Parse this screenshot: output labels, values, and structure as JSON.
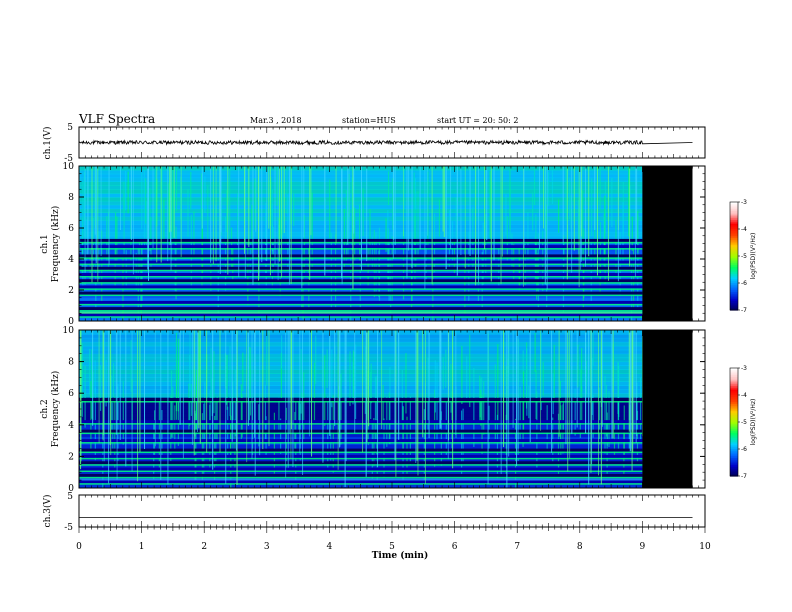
{
  "header": {
    "title": "VLF Spectra",
    "date": "Mar.3 , 2018",
    "station": "station=HUS",
    "start": "start UT = 20: 50: 2"
  },
  "chart_data": [
    {
      "id": "ch1-waveform",
      "type": "line",
      "ylabel": "ch.1(V)",
      "ylim": [
        -5,
        5
      ],
      "yticks": [
        "5",
        "-5"
      ],
      "xlim": [
        0,
        10
      ],
      "signal": {
        "baseline": 0,
        "noise_amplitude": 0.6,
        "data_end_min": 9.0,
        "flat_until_min": 9.8
      }
    },
    {
      "id": "ch1-spectrogram",
      "type": "heatmap",
      "ylabel_top": "ch.1",
      "ylabel": "Frequency (kHz)",
      "ylim": [
        0,
        10
      ],
      "yticks": [
        "0",
        "2",
        "4",
        "6",
        "8",
        "10"
      ],
      "xlim": [
        0,
        10
      ],
      "data_end_min": 9.0,
      "blank_until_min": 9.8,
      "bands_khz": [
        0.4,
        0.8,
        1.2,
        1.8,
        2.2,
        2.6,
        3.0,
        3.4,
        3.8,
        4.2,
        4.8,
        5.2
      ],
      "colorbar": {
        "label": "log(PSD)(V²/Hz)",
        "ticks": [
          "-3",
          "-4",
          "-5",
          "-6",
          "-7"
        ],
        "range": [
          -7,
          -3
        ]
      }
    },
    {
      "id": "ch2-spectrogram",
      "type": "heatmap",
      "ylabel_top": "ch.2",
      "ylabel": "Frequency (kHz)",
      "ylim": [
        0,
        10
      ],
      "yticks": [
        "0",
        "2",
        "4",
        "6",
        "8",
        "10"
      ],
      "xlim": [
        0,
        10
      ],
      "data_end_min": 9.0,
      "blank_until_min": 9.8,
      "bands_khz": [
        0.4,
        0.8,
        1.2,
        1.6,
        2.0,
        2.4,
        3.0,
        3.6,
        4.2,
        5.6
      ],
      "colorbar": {
        "label": "log(PSD)(V²/Hz)",
        "ticks": [
          "-3",
          "-4",
          "-5",
          "-6",
          "-7"
        ],
        "range": [
          -7,
          -3
        ]
      }
    },
    {
      "id": "ch3-waveform",
      "type": "line",
      "ylabel": "ch.3(V)",
      "ylim": [
        -5,
        5
      ],
      "yticks": [
        "5",
        "-5"
      ],
      "xlim": [
        0,
        10
      ],
      "signal": {
        "baseline": -2,
        "noise_amplitude": 0,
        "data_end_min": 9.8,
        "flat_until_min": 9.8
      }
    }
  ],
  "xaxis": {
    "label": "Time (min)",
    "ticks": [
      "0",
      "1",
      "2",
      "3",
      "4",
      "5",
      "6",
      "7",
      "8",
      "9",
      "10"
    ]
  },
  "colors": {
    "frame": "#000000",
    "colormap": [
      "#000050",
      "#0000c8",
      "#0066ff",
      "#00d0ff",
      "#00ff60",
      "#a0ff00",
      "#ffcc00",
      "#ff4000",
      "#ff0000",
      "#ffc0c0",
      "#ffffff"
    ]
  }
}
